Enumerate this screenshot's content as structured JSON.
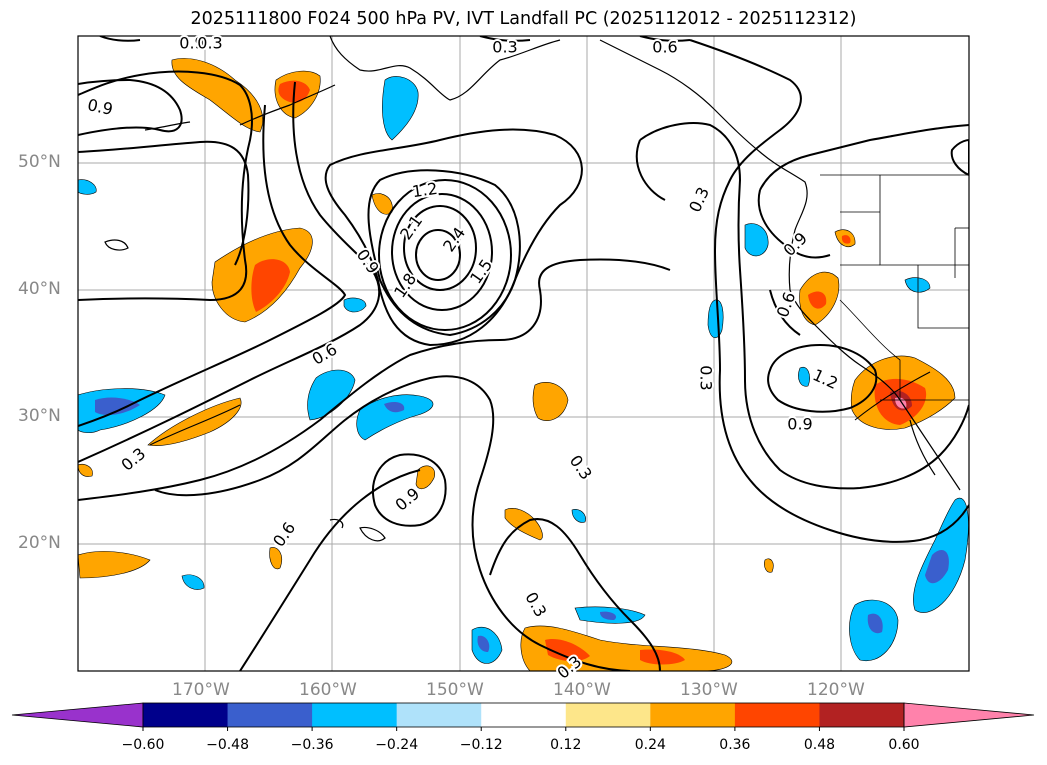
{
  "title": "2025111800 F024 500 hPa PV, IVT Landfall PC (2025112012 - 2025112312)",
  "lat_labels": [
    "50°N",
    "40°N",
    "30°N",
    "20°N"
  ],
  "lon_labels": [
    "170°W",
    "160°W",
    "150°W",
    "140°W",
    "130°W",
    "120°W"
  ],
  "contour_labels": [
    "0.9",
    "0.3",
    "0.6",
    "0.9",
    "1.2",
    "2.1",
    "2.4",
    "1.5",
    "1.8",
    "0.9",
    "0.6",
    "0.3",
    "0.9",
    "0.6",
    "0.3",
    "0.3",
    "0.9",
    "1.2",
    "0.9",
    "0.6",
    "0.3",
    "0.3",
    "0.3",
    "0.3"
  ],
  "colorbar": {
    "ticks": [
      "−0.60",
      "−0.48",
      "−0.36",
      "−0.24",
      "−0.12",
      "0.12",
      "0.24",
      "0.36",
      "0.48",
      "0.60"
    ],
    "colors": [
      "#9932cc",
      "#00008b",
      "#3a5fcd",
      "#00bfff",
      "#afe2fa",
      "#ffffff",
      "#fde68a",
      "#ffa500",
      "#ff4500",
      "#b22222",
      "#ff82ab"
    ]
  },
  "map": {
    "lat_range": [
      10,
      60
    ],
    "lon_range": [
      -180,
      -110
    ],
    "grid": true,
    "fill_colors": {
      "blue": "#00bfff",
      "darkblue": "#3a5fcd",
      "orange": "#ffa500",
      "red": "#ff4500",
      "darkred": "#b22222",
      "pink": "#ff82ab"
    }
  }
}
